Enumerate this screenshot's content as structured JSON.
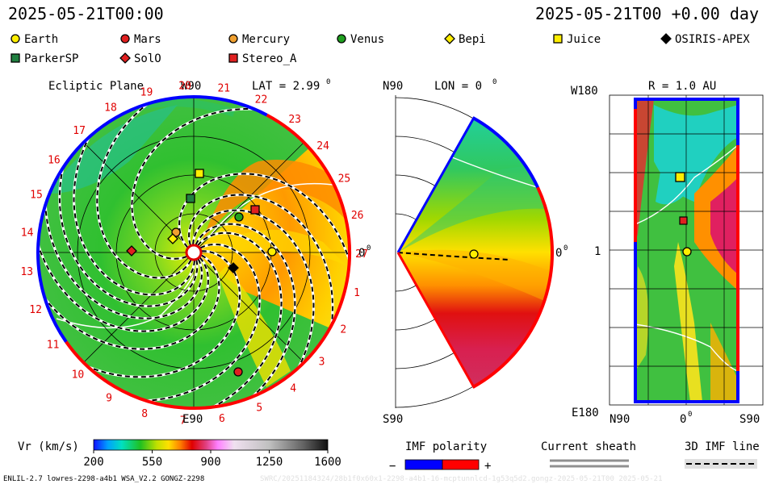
{
  "header": {
    "date_left": "2025-05-21T00:00",
    "date_right": "2025-05-21T00 +0.00 day"
  },
  "legend": {
    "items": [
      {
        "name": "Earth",
        "marker": "circle",
        "color": "#ffee00"
      },
      {
        "name": "Mars",
        "marker": "circle",
        "color": "#e02020"
      },
      {
        "name": "Mercury",
        "marker": "circle",
        "color": "#f0a030"
      },
      {
        "name": "Venus",
        "marker": "circle",
        "color": "#20a020"
      },
      {
        "name": "Bepi",
        "marker": "diamond",
        "color": "#ffee00"
      },
      {
        "name": "Juice",
        "marker": "square",
        "color": "#ffee00"
      },
      {
        "name": "OSIRIS-APEX",
        "marker": "diamond",
        "color": "#000000"
      },
      {
        "name": "ParkerSP",
        "marker": "square",
        "color": "#208040"
      },
      {
        "name": "SolO",
        "marker": "diamond",
        "color": "#e02020"
      },
      {
        "name": "Stereo_A",
        "marker": "square",
        "color": "#e02020"
      }
    ]
  },
  "panel_ecliptic": {
    "title": "Ecliptic Plane",
    "lat_label": "LAT = 2.99",
    "lat_deg": "0",
    "top_label": "W90",
    "bottom_label": "E90",
    "right_label": "0",
    "right_deg": "0",
    "carrington": [
      "1",
      "2",
      "3",
      "4",
      "5",
      "6",
      "7",
      "8",
      "9",
      "10",
      "11",
      "12",
      "13",
      "14",
      "15",
      "16",
      "17",
      "18",
      "19",
      "20",
      "21",
      "22",
      "23",
      "24",
      "25",
      "26",
      "27"
    ]
  },
  "panel_meridional": {
    "top_label": "N90",
    "lon_label": "LON = 0",
    "lon_deg": "0",
    "bottom_label": "S90",
    "right_label": "0",
    "right_deg": "0"
  },
  "panel_sphere": {
    "title": "R = 1.0 AU",
    "top_left_label": "W180",
    "mid_left_label": "1",
    "bottom_left_label": "E180",
    "x_labels": [
      "N90",
      "0",
      "S90"
    ],
    "x_mid_deg": "0"
  },
  "colorbar": {
    "label": "Vr (km/s)",
    "ticks": [
      "200",
      "550",
      "900",
      "1250",
      "1600"
    ],
    "range": [
      200,
      1600
    ]
  },
  "imf_polarity": {
    "label": "IMF polarity",
    "minus": "−",
    "plus": "+",
    "colors": [
      "#0000ff",
      "#ff0000"
    ]
  },
  "current_sheath": {
    "label": "Current sheath"
  },
  "imf_line": {
    "label": "3D IMF line"
  },
  "footer": {
    "left": "ENLIL-2.7 lowres-2298-a4b1 WSA_V2.2 GONGZ-2298",
    "right": "SWRC/20251184324/28b1f0x60x1-2298-a4b1-16-mcptunnlcd-1g53q5d2.gongz-2025-05-21T00   2025-05-21"
  }
}
